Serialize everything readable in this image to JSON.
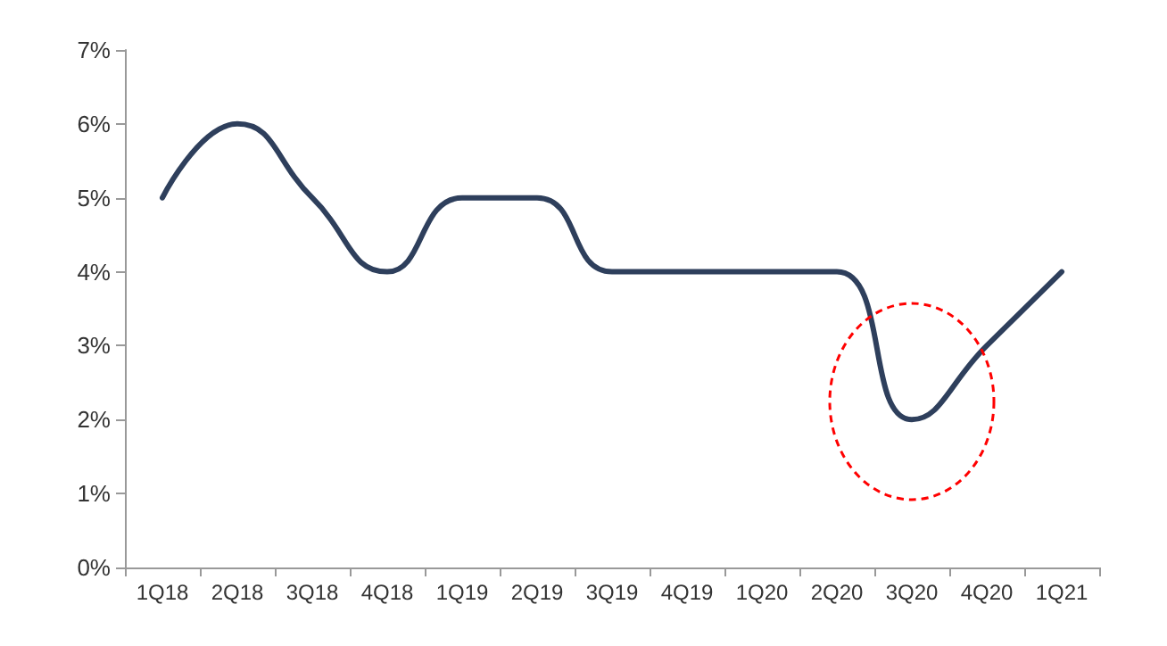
{
  "chart_data": {
    "type": "line",
    "categories": [
      "1Q18",
      "2Q18",
      "3Q18",
      "4Q18",
      "1Q19",
      "2Q19",
      "3Q19",
      "4Q19",
      "1Q20",
      "2Q20",
      "3Q20",
      "4Q20",
      "1Q21"
    ],
    "series": [
      {
        "color": "#2e3f5c",
        "values": [
          5,
          6,
          5,
          4,
          5,
          5,
          4,
          4,
          4,
          4,
          2,
          3,
          4
        ]
      }
    ],
    "ylim": [
      0,
      7
    ],
    "yticks": [
      {
        "value": 0,
        "label": "0%"
      },
      {
        "value": 1,
        "label": "1%"
      },
      {
        "value": 2,
        "label": "2%"
      },
      {
        "value": 3,
        "label": "3%"
      },
      {
        "value": 4,
        "label": "4%"
      },
      {
        "value": 5,
        "label": "5%"
      },
      {
        "value": 6,
        "label": "6%"
      },
      {
        "value": 7,
        "label": "7%"
      }
    ],
    "marker": "none",
    "line_style": "solid"
  }
}
